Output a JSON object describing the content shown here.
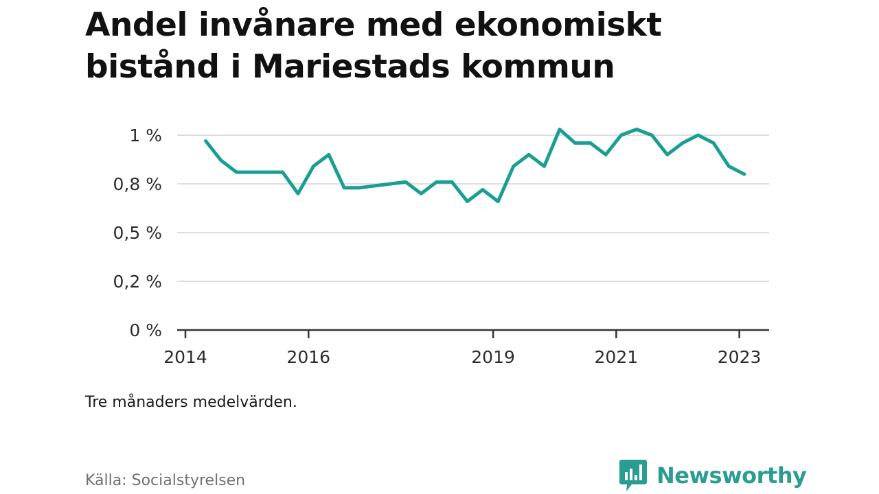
{
  "title": "Andel invånare med ekonomiskt bistånd i Mariestads kommun",
  "note": "Tre månaders medelvärden.",
  "source": "Källa: Socialstyrelsen",
  "brand": {
    "name": "Newsworthy",
    "icon": "newsworthy-logo-icon",
    "color": "#2a9d93"
  },
  "chart_data": {
    "type": "line",
    "line_color": "#1a9e93",
    "grid": true,
    "xlabel": "",
    "ylabel": "",
    "xlim": [
      2014.0,
      2023.25
    ],
    "ylim": [
      0,
      1.0
    ],
    "x_ticks": [
      2014,
      2016,
      2019,
      2021,
      2023
    ],
    "y_ticks": [
      {
        "value": 0.0,
        "label": "0 %"
      },
      {
        "value": 0.25,
        "label": "0,2 %"
      },
      {
        "value": 0.5,
        "label": "0,5 %"
      },
      {
        "value": 0.75,
        "label": "0,8 %"
      },
      {
        "value": 1.0,
        "label": "1 %"
      }
    ],
    "series": [
      {
        "x": [
          2014.33,
          2014.58,
          2014.83,
          2015.08,
          2015.33,
          2015.58,
          2015.83,
          2016.08,
          2016.33,
          2016.58,
          2016.83,
          2017.08,
          2017.33,
          2017.58,
          2017.83,
          2018.08,
          2018.33,
          2018.58,
          2018.83,
          2019.08,
          2019.33,
          2019.58,
          2019.83,
          2020.08,
          2020.33,
          2020.58,
          2020.83,
          2021.08,
          2021.33,
          2021.58,
          2021.83,
          2022.08,
          2022.33,
          2022.58,
          2022.83,
          2023.08
        ],
        "values": [
          0.97,
          0.87,
          0.81,
          0.81,
          0.81,
          0.81,
          0.7,
          0.84,
          0.9,
          0.73,
          0.73,
          0.74,
          0.75,
          0.76,
          0.7,
          0.76,
          0.76,
          0.66,
          0.72,
          0.66,
          0.84,
          0.9,
          0.84,
          1.03,
          0.96,
          0.96,
          0.9,
          1.0,
          1.03,
          1.0,
          0.9,
          0.96,
          1.0,
          0.96,
          0.84,
          0.8
        ]
      }
    ]
  }
}
